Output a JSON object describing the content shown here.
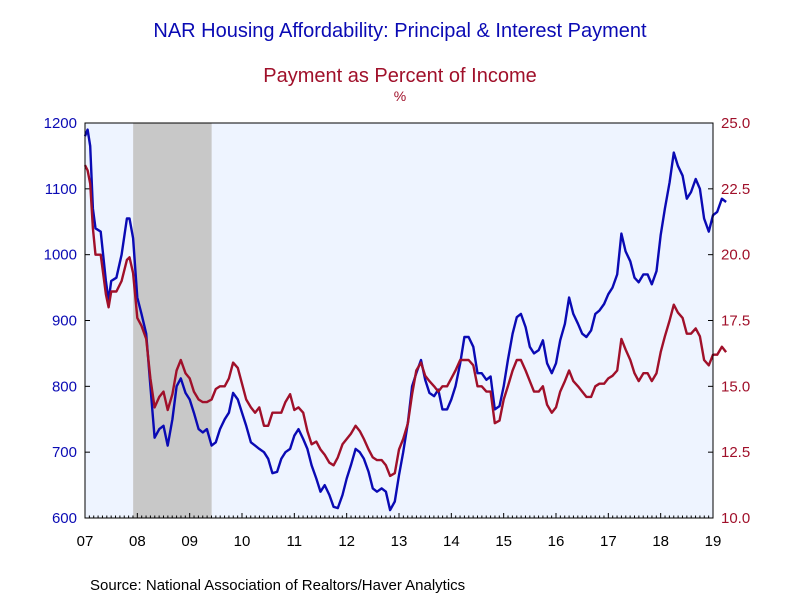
{
  "colors": {
    "series1": "#0a0ab4",
    "series2": "#a0102a",
    "plot_bg": "#eef4ff",
    "recession": "#c8c8c8"
  },
  "chart_data": {
    "type": "line",
    "title": "NAR Housing Affordability: Principal & Interest Payment",
    "subtitle": "Payment as Percent of Income",
    "unit_label": "%",
    "source": "Source:  National Association of Realtors/Haver Analytics",
    "x_tick_labels": [
      "07",
      "08",
      "09",
      "10",
      "11",
      "12",
      "13",
      "14",
      "15",
      "16",
      "17",
      "18",
      "19"
    ],
    "x_range": [
      2007.0,
      2019.0
    ],
    "left_axis": {
      "ylim": [
        600,
        1200
      ],
      "ticks": [
        600,
        700,
        800,
        900,
        1000,
        1100,
        1200
      ]
    },
    "right_axis": {
      "ylim": [
        10.0,
        25.0
      ],
      "ticks": [
        "10.0",
        "12.5",
        "15.0",
        "17.5",
        "20.0",
        "22.5",
        "25.0"
      ]
    },
    "recession": [
      2007.92,
      2009.42
    ],
    "series": [
      {
        "axis": "left",
        "points": [
          [
            2007.0,
            1180
          ],
          [
            2007.05,
            1190
          ],
          [
            2007.1,
            1165
          ],
          [
            2007.15,
            1070
          ],
          [
            2007.2,
            1040
          ],
          [
            2007.3,
            1035
          ],
          [
            2007.4,
            960
          ],
          [
            2007.45,
            930
          ],
          [
            2007.5,
            960
          ],
          [
            2007.6,
            965
          ],
          [
            2007.7,
            1000
          ],
          [
            2007.8,
            1055
          ],
          [
            2007.85,
            1055
          ],
          [
            2007.92,
            1025
          ],
          [
            2008.0,
            935
          ],
          [
            2008.08,
            910
          ],
          [
            2008.17,
            880
          ],
          [
            2008.25,
            800
          ],
          [
            2008.33,
            722
          ],
          [
            2008.42,
            735
          ],
          [
            2008.5,
            740
          ],
          [
            2008.58,
            710
          ],
          [
            2008.67,
            750
          ],
          [
            2008.75,
            800
          ],
          [
            2008.83,
            812
          ],
          [
            2008.92,
            790
          ],
          [
            2009.0,
            780
          ],
          [
            2009.08,
            760
          ],
          [
            2009.17,
            735
          ],
          [
            2009.25,
            730
          ],
          [
            2009.33,
            735
          ],
          [
            2009.42,
            710
          ],
          [
            2009.5,
            715
          ],
          [
            2009.58,
            735
          ],
          [
            2009.67,
            750
          ],
          [
            2009.75,
            760
          ],
          [
            2009.83,
            790
          ],
          [
            2009.92,
            780
          ],
          [
            2010.0,
            760
          ],
          [
            2010.08,
            740
          ],
          [
            2010.17,
            715
          ],
          [
            2010.25,
            710
          ],
          [
            2010.33,
            705
          ],
          [
            2010.42,
            700
          ],
          [
            2010.5,
            690
          ],
          [
            2010.58,
            668
          ],
          [
            2010.67,
            670
          ],
          [
            2010.75,
            690
          ],
          [
            2010.83,
            700
          ],
          [
            2010.92,
            705
          ],
          [
            2011.0,
            725
          ],
          [
            2011.08,
            735
          ],
          [
            2011.17,
            720
          ],
          [
            2011.25,
            705
          ],
          [
            2011.33,
            680
          ],
          [
            2011.42,
            660
          ],
          [
            2011.5,
            640
          ],
          [
            2011.58,
            650
          ],
          [
            2011.67,
            635
          ],
          [
            2011.75,
            617
          ],
          [
            2011.83,
            615
          ],
          [
            2011.92,
            635
          ],
          [
            2012.0,
            660
          ],
          [
            2012.08,
            680
          ],
          [
            2012.17,
            705
          ],
          [
            2012.25,
            700
          ],
          [
            2012.33,
            690
          ],
          [
            2012.42,
            670
          ],
          [
            2012.5,
            645
          ],
          [
            2012.58,
            640
          ],
          [
            2012.67,
            645
          ],
          [
            2012.75,
            640
          ],
          [
            2012.83,
            612
          ],
          [
            2012.92,
            625
          ],
          [
            2013.0,
            665
          ],
          [
            2013.08,
            700
          ],
          [
            2013.17,
            745
          ],
          [
            2013.25,
            800
          ],
          [
            2013.33,
            820
          ],
          [
            2013.42,
            840
          ],
          [
            2013.5,
            810
          ],
          [
            2013.58,
            790
          ],
          [
            2013.67,
            785
          ],
          [
            2013.75,
            795
          ],
          [
            2013.83,
            765
          ],
          [
            2013.92,
            765
          ],
          [
            2014.0,
            780
          ],
          [
            2014.08,
            800
          ],
          [
            2014.17,
            835
          ],
          [
            2014.25,
            875
          ],
          [
            2014.33,
            875
          ],
          [
            2014.42,
            860
          ],
          [
            2014.5,
            820
          ],
          [
            2014.58,
            820
          ],
          [
            2014.67,
            810
          ],
          [
            2014.75,
            815
          ],
          [
            2014.83,
            765
          ],
          [
            2014.92,
            770
          ],
          [
            2015.0,
            800
          ],
          [
            2015.08,
            840
          ],
          [
            2015.17,
            880
          ],
          [
            2015.25,
            905
          ],
          [
            2015.33,
            910
          ],
          [
            2015.42,
            890
          ],
          [
            2015.5,
            860
          ],
          [
            2015.58,
            850
          ],
          [
            2015.67,
            855
          ],
          [
            2015.75,
            870
          ],
          [
            2015.83,
            835
          ],
          [
            2015.92,
            820
          ],
          [
            2016.0,
            835
          ],
          [
            2016.08,
            870
          ],
          [
            2016.17,
            895
          ],
          [
            2016.25,
            935
          ],
          [
            2016.33,
            910
          ],
          [
            2016.42,
            895
          ],
          [
            2016.5,
            880
          ],
          [
            2016.58,
            875
          ],
          [
            2016.67,
            885
          ],
          [
            2016.75,
            910
          ],
          [
            2016.83,
            915
          ],
          [
            2016.92,
            925
          ],
          [
            2017.0,
            940
          ],
          [
            2017.08,
            950
          ],
          [
            2017.17,
            970
          ],
          [
            2017.25,
            1032
          ],
          [
            2017.33,
            1005
          ],
          [
            2017.42,
            990
          ],
          [
            2017.5,
            965
          ],
          [
            2017.58,
            958
          ],
          [
            2017.67,
            970
          ],
          [
            2017.75,
            970
          ],
          [
            2017.83,
            955
          ],
          [
            2017.92,
            975
          ],
          [
            2018.0,
            1030
          ],
          [
            2018.08,
            1070
          ],
          [
            2018.17,
            1110
          ],
          [
            2018.25,
            1155
          ],
          [
            2018.33,
            1135
          ],
          [
            2018.42,
            1120
          ],
          [
            2018.5,
            1085
          ],
          [
            2018.58,
            1095
          ],
          [
            2018.67,
            1115
          ],
          [
            2018.75,
            1100
          ],
          [
            2018.83,
            1055
          ],
          [
            2018.92,
            1035
          ],
          [
            2019.0,
            1060
          ],
          [
            2019.08,
            1065
          ],
          [
            2019.17,
            1085
          ],
          [
            2019.25,
            1080
          ]
        ]
      },
      {
        "axis": "right",
        "points": [
          [
            2007.0,
            23.4
          ],
          [
            2007.05,
            23.2
          ],
          [
            2007.1,
            22.7
          ],
          [
            2007.15,
            21.0
          ],
          [
            2007.2,
            20.0
          ],
          [
            2007.3,
            20.0
          ],
          [
            2007.4,
            18.5
          ],
          [
            2007.45,
            18.0
          ],
          [
            2007.5,
            18.6
          ],
          [
            2007.6,
            18.6
          ],
          [
            2007.7,
            19.0
          ],
          [
            2007.8,
            19.8
          ],
          [
            2007.85,
            19.9
          ],
          [
            2007.92,
            19.3
          ],
          [
            2008.0,
            17.6
          ],
          [
            2008.08,
            17.3
          ],
          [
            2008.17,
            16.8
          ],
          [
            2008.25,
            15.3
          ],
          [
            2008.33,
            14.2
          ],
          [
            2008.42,
            14.6
          ],
          [
            2008.5,
            14.8
          ],
          [
            2008.58,
            14.1
          ],
          [
            2008.67,
            14.7
          ],
          [
            2008.75,
            15.6
          ],
          [
            2008.83,
            16.0
          ],
          [
            2008.92,
            15.5
          ],
          [
            2009.0,
            15.3
          ],
          [
            2009.08,
            14.8
          ],
          [
            2009.17,
            14.5
          ],
          [
            2009.25,
            14.4
          ],
          [
            2009.33,
            14.4
          ],
          [
            2009.42,
            14.5
          ],
          [
            2009.5,
            14.9
          ],
          [
            2009.58,
            15.0
          ],
          [
            2009.67,
            15.0
          ],
          [
            2009.75,
            15.3
          ],
          [
            2009.83,
            15.9
          ],
          [
            2009.92,
            15.7
          ],
          [
            2010.0,
            15.1
          ],
          [
            2010.08,
            14.5
          ],
          [
            2010.17,
            14.2
          ],
          [
            2010.25,
            14.0
          ],
          [
            2010.33,
            14.2
          ],
          [
            2010.42,
            13.5
          ],
          [
            2010.5,
            13.5
          ],
          [
            2010.58,
            14.0
          ],
          [
            2010.67,
            14.0
          ],
          [
            2010.75,
            14.0
          ],
          [
            2010.83,
            14.4
          ],
          [
            2010.92,
            14.7
          ],
          [
            2011.0,
            14.1
          ],
          [
            2011.08,
            14.2
          ],
          [
            2011.17,
            14.0
          ],
          [
            2011.25,
            13.3
          ],
          [
            2011.33,
            12.8
          ],
          [
            2011.42,
            12.9
          ],
          [
            2011.5,
            12.6
          ],
          [
            2011.58,
            12.4
          ],
          [
            2011.67,
            12.1
          ],
          [
            2011.75,
            12.0
          ],
          [
            2011.83,
            12.3
          ],
          [
            2011.92,
            12.8
          ],
          [
            2012.0,
            13.0
          ],
          [
            2012.08,
            13.2
          ],
          [
            2012.17,
            13.5
          ],
          [
            2012.25,
            13.3
          ],
          [
            2012.33,
            13.0
          ],
          [
            2012.42,
            12.6
          ],
          [
            2012.5,
            12.3
          ],
          [
            2012.58,
            12.2
          ],
          [
            2012.67,
            12.2
          ],
          [
            2012.75,
            12.0
          ],
          [
            2012.83,
            11.6
          ],
          [
            2012.92,
            11.7
          ],
          [
            2013.0,
            12.6
          ],
          [
            2013.08,
            13.0
          ],
          [
            2013.17,
            13.6
          ],
          [
            2013.25,
            14.7
          ],
          [
            2013.33,
            15.6
          ],
          [
            2013.42,
            15.9
          ],
          [
            2013.5,
            15.4
          ],
          [
            2013.58,
            15.2
          ],
          [
            2013.67,
            15.0
          ],
          [
            2013.75,
            14.8
          ],
          [
            2013.83,
            15.0
          ],
          [
            2013.92,
            15.0
          ],
          [
            2014.0,
            15.3
          ],
          [
            2014.08,
            15.6
          ],
          [
            2014.17,
            16.0
          ],
          [
            2014.25,
            16.0
          ],
          [
            2014.33,
            16.0
          ],
          [
            2014.42,
            15.8
          ],
          [
            2014.5,
            15.0
          ],
          [
            2014.58,
            15.0
          ],
          [
            2014.67,
            14.8
          ],
          [
            2014.75,
            14.8
          ],
          [
            2014.83,
            13.6
          ],
          [
            2014.92,
            13.7
          ],
          [
            2015.0,
            14.5
          ],
          [
            2015.08,
            15.0
          ],
          [
            2015.17,
            15.6
          ],
          [
            2015.25,
            16.0
          ],
          [
            2015.33,
            16.0
          ],
          [
            2015.42,
            15.6
          ],
          [
            2015.5,
            15.2
          ],
          [
            2015.58,
            14.8
          ],
          [
            2015.67,
            14.8
          ],
          [
            2015.75,
            15.0
          ],
          [
            2015.83,
            14.3
          ],
          [
            2015.92,
            14.0
          ],
          [
            2016.0,
            14.2
          ],
          [
            2016.08,
            14.8
          ],
          [
            2016.17,
            15.2
          ],
          [
            2016.25,
            15.6
          ],
          [
            2016.33,
            15.2
          ],
          [
            2016.42,
            15.0
          ],
          [
            2016.5,
            14.8
          ],
          [
            2016.58,
            14.6
          ],
          [
            2016.67,
            14.6
          ],
          [
            2016.75,
            15.0
          ],
          [
            2016.83,
            15.1
          ],
          [
            2016.92,
            15.1
          ],
          [
            2017.0,
            15.3
          ],
          [
            2017.08,
            15.4
          ],
          [
            2017.17,
            15.6
          ],
          [
            2017.25,
            16.8
          ],
          [
            2017.33,
            16.4
          ],
          [
            2017.42,
            16.0
          ],
          [
            2017.5,
            15.5
          ],
          [
            2017.58,
            15.2
          ],
          [
            2017.67,
            15.5
          ],
          [
            2017.75,
            15.5
          ],
          [
            2017.83,
            15.2
          ],
          [
            2017.92,
            15.5
          ],
          [
            2018.0,
            16.3
          ],
          [
            2018.08,
            16.9
          ],
          [
            2018.17,
            17.5
          ],
          [
            2018.25,
            18.1
          ],
          [
            2018.33,
            17.8
          ],
          [
            2018.42,
            17.6
          ],
          [
            2018.5,
            17.0
          ],
          [
            2018.58,
            17.0
          ],
          [
            2018.67,
            17.2
          ],
          [
            2018.75,
            16.9
          ],
          [
            2018.83,
            16.0
          ],
          [
            2018.92,
            15.8
          ],
          [
            2019.0,
            16.2
          ],
          [
            2019.08,
            16.2
          ],
          [
            2019.17,
            16.5
          ],
          [
            2019.25,
            16.3
          ]
        ]
      }
    ]
  }
}
